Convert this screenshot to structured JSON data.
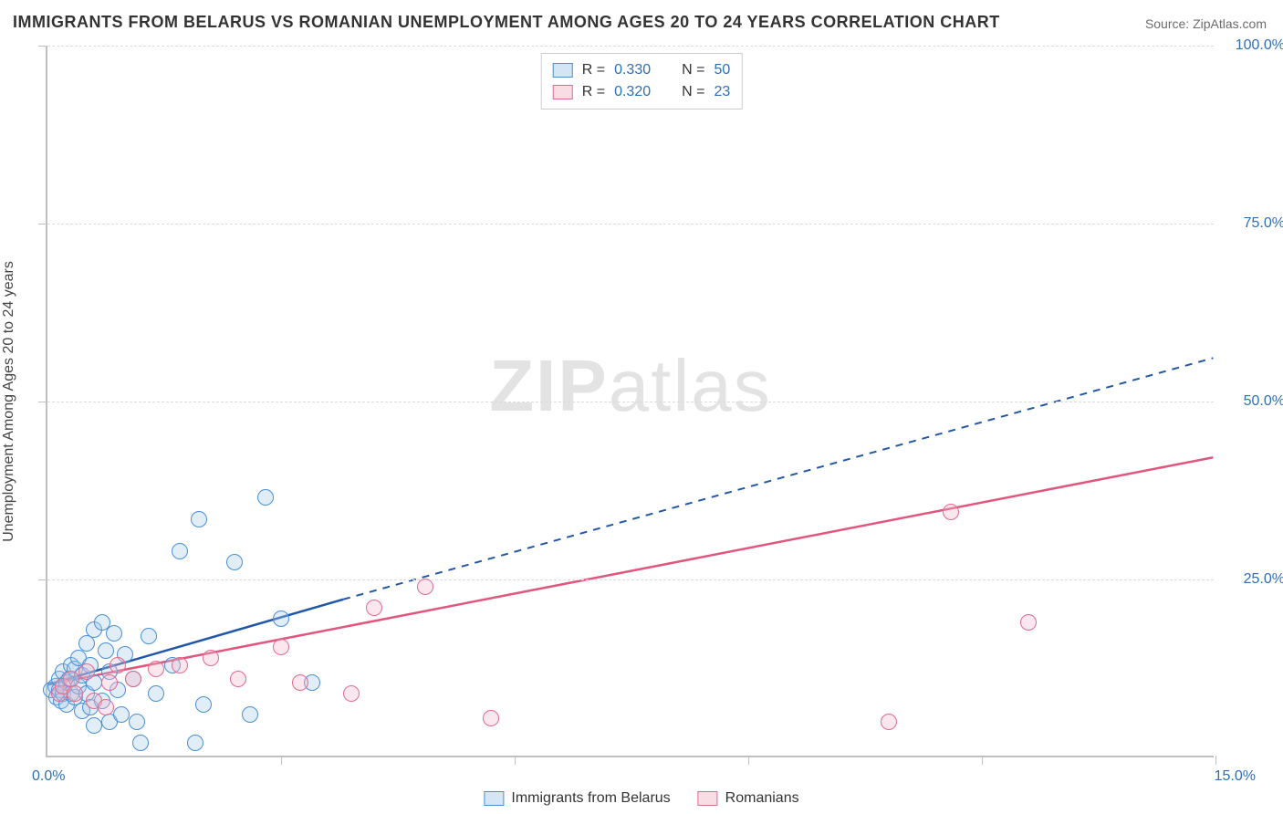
{
  "title": "IMMIGRANTS FROM BELARUS VS ROMANIAN UNEMPLOYMENT AMONG AGES 20 TO 24 YEARS CORRELATION CHART",
  "source": "Source: ZipAtlas.com",
  "ylabel": "Unemployment Among Ages 20 to 24 years",
  "watermark_bold": "ZIP",
  "watermark_light": "atlas",
  "chart": {
    "type": "scatter",
    "background_color": "#ffffff",
    "grid_color": "#dcdcdc",
    "axis_color": "#bfbfbf",
    "tick_label_color": "#2f6fb3",
    "text_color": "#444444",
    "title_color": "#333333",
    "title_fontsize": 18,
    "label_fontsize": 16,
    "tick_fontsize": 16,
    "xlim": [
      0,
      15
    ],
    "ylim": [
      0,
      100
    ],
    "x_tick_positions": [
      3,
      6,
      9,
      12,
      15
    ],
    "y_ticks": [
      {
        "v": 25,
        "label": "25.0%"
      },
      {
        "v": 50,
        "label": "50.0%"
      },
      {
        "v": 75,
        "label": "75.0%"
      },
      {
        "v": 100,
        "label": "100.0%"
      }
    ],
    "x_left_label": "0.0%",
    "x_right_label": "15.0%",
    "marker_radius": 9,
    "marker_border_width": 1.5,
    "marker_fill_opacity": 0.35,
    "line_width_solid": 2.5,
    "line_width_dash": 2
  },
  "series": [
    {
      "name": "Immigrants from Belarus",
      "color_border": "#4a8fd6",
      "color_fill": "#a9cbe8",
      "trend": {
        "color": "#1f56a8",
        "solid_from": [
          0,
          10
        ],
        "solid_to": [
          3.8,
          22
        ],
        "dash_to": [
          15,
          56
        ]
      },
      "points": [
        [
          0.05,
          9.5
        ],
        [
          0.1,
          10.0
        ],
        [
          0.12,
          8.5
        ],
        [
          0.15,
          9.5
        ],
        [
          0.15,
          11.0
        ],
        [
          0.18,
          8.0
        ],
        [
          0.2,
          12.0
        ],
        [
          0.2,
          9.0
        ],
        [
          0.25,
          10.5
        ],
        [
          0.25,
          7.5
        ],
        [
          0.28,
          11.0
        ],
        [
          0.3,
          13.0
        ],
        [
          0.3,
          9.0
        ],
        [
          0.35,
          8.5
        ],
        [
          0.35,
          12.5
        ],
        [
          0.4,
          14.0
        ],
        [
          0.4,
          10.0
        ],
        [
          0.45,
          6.5
        ],
        [
          0.45,
          11.5
        ],
        [
          0.5,
          16.0
        ],
        [
          0.5,
          9.0
        ],
        [
          0.55,
          7.0
        ],
        [
          0.55,
          13.0
        ],
        [
          0.6,
          18.0
        ],
        [
          0.6,
          10.5
        ],
        [
          0.6,
          4.5
        ],
        [
          0.7,
          19.0
        ],
        [
          0.7,
          8.0
        ],
        [
          0.75,
          15.0
        ],
        [
          0.8,
          5.0
        ],
        [
          0.8,
          12.0
        ],
        [
          0.85,
          17.5
        ],
        [
          0.9,
          9.5
        ],
        [
          0.95,
          6.0
        ],
        [
          1.0,
          14.5
        ],
        [
          1.1,
          11.0
        ],
        [
          1.15,
          5.0
        ],
        [
          1.2,
          2.0
        ],
        [
          1.3,
          17.0
        ],
        [
          1.4,
          9.0
        ],
        [
          1.6,
          13.0
        ],
        [
          1.7,
          29.0
        ],
        [
          1.9,
          2.0
        ],
        [
          1.95,
          33.5
        ],
        [
          2.0,
          7.5
        ],
        [
          2.4,
          27.5
        ],
        [
          2.6,
          6.0
        ],
        [
          2.8,
          36.5
        ],
        [
          3.0,
          19.5
        ],
        [
          3.4,
          10.5
        ]
      ]
    },
    {
      "name": "Romanians",
      "color_border": "#e36b8f",
      "color_fill": "#f3bbca",
      "trend": {
        "color": "#e0567d",
        "solid_from": [
          0,
          10
        ],
        "solid_to": [
          15,
          42
        ]
      },
      "points": [
        [
          0.15,
          9.0
        ],
        [
          0.2,
          10.0
        ],
        [
          0.3,
          11.0
        ],
        [
          0.35,
          9.0
        ],
        [
          0.5,
          12.0
        ],
        [
          0.6,
          8.0
        ],
        [
          0.75,
          7.0
        ],
        [
          0.8,
          10.5
        ],
        [
          0.9,
          13.0
        ],
        [
          1.1,
          11.0
        ],
        [
          1.4,
          12.5
        ],
        [
          1.7,
          13.0
        ],
        [
          2.1,
          14.0
        ],
        [
          2.45,
          11.0
        ],
        [
          3.0,
          15.5
        ],
        [
          3.25,
          10.5
        ],
        [
          3.9,
          9.0
        ],
        [
          4.2,
          21.0
        ],
        [
          4.85,
          24.0
        ],
        [
          5.7,
          5.5
        ],
        [
          10.8,
          5.0
        ],
        [
          11.6,
          34.5
        ],
        [
          12.6,
          19.0
        ]
      ]
    }
  ],
  "stat_legend": [
    {
      "series": 0,
      "r_label": "R =",
      "r_value": "0.330",
      "n_label": "N =",
      "n_value": "50"
    },
    {
      "series": 1,
      "r_label": "R =",
      "r_value": "0.320",
      "n_label": "N =",
      "n_value": "23"
    }
  ],
  "bottom_legend": [
    {
      "series": 0,
      "label": "Immigrants from Belarus"
    },
    {
      "series": 1,
      "label": "Romanians"
    }
  ]
}
